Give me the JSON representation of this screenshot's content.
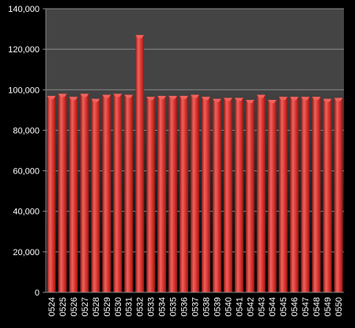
{
  "colors": {
    "page_background": "#000000",
    "plot_background_top": "#444444",
    "plot_background_bottom": "#000000",
    "gridline": "#8a8a8a",
    "bar_fill": "#d9302c",
    "bar_highlight": "#f0625c",
    "bar_shadow": "#8f1a17",
    "tick_label": "#ffffff"
  },
  "chart_data": {
    "type": "bar",
    "categories": [
      "0524",
      "0525",
      "0526",
      "0527",
      "0528",
      "0529",
      "0530",
      "0531",
      "0532",
      "0533",
      "0534",
      "0535",
      "0536",
      "0537",
      "0538",
      "0539",
      "0540",
      "0541",
      "0542",
      "0543",
      "0544",
      "0545",
      "0546",
      "0547",
      "0548",
      "0549",
      "0550"
    ],
    "values": [
      97000,
      98000,
      96500,
      98000,
      95500,
      97500,
      98000,
      97500,
      127000,
      96500,
      97000,
      97000,
      97000,
      97500,
      96500,
      95500,
      96000,
      96000,
      95000,
      97500,
      95000,
      96500,
      96500,
      96500,
      96500,
      95500,
      96000
    ],
    "y_ticks": [
      "0",
      "20,000",
      "40,000",
      "60,000",
      "80,000",
      "100,000",
      "120,000",
      "140,000"
    ],
    "ylim": [
      0,
      140000
    ],
    "grid": true,
    "legend": "none",
    "title": "",
    "xlabel": "",
    "ylabel": ""
  }
}
